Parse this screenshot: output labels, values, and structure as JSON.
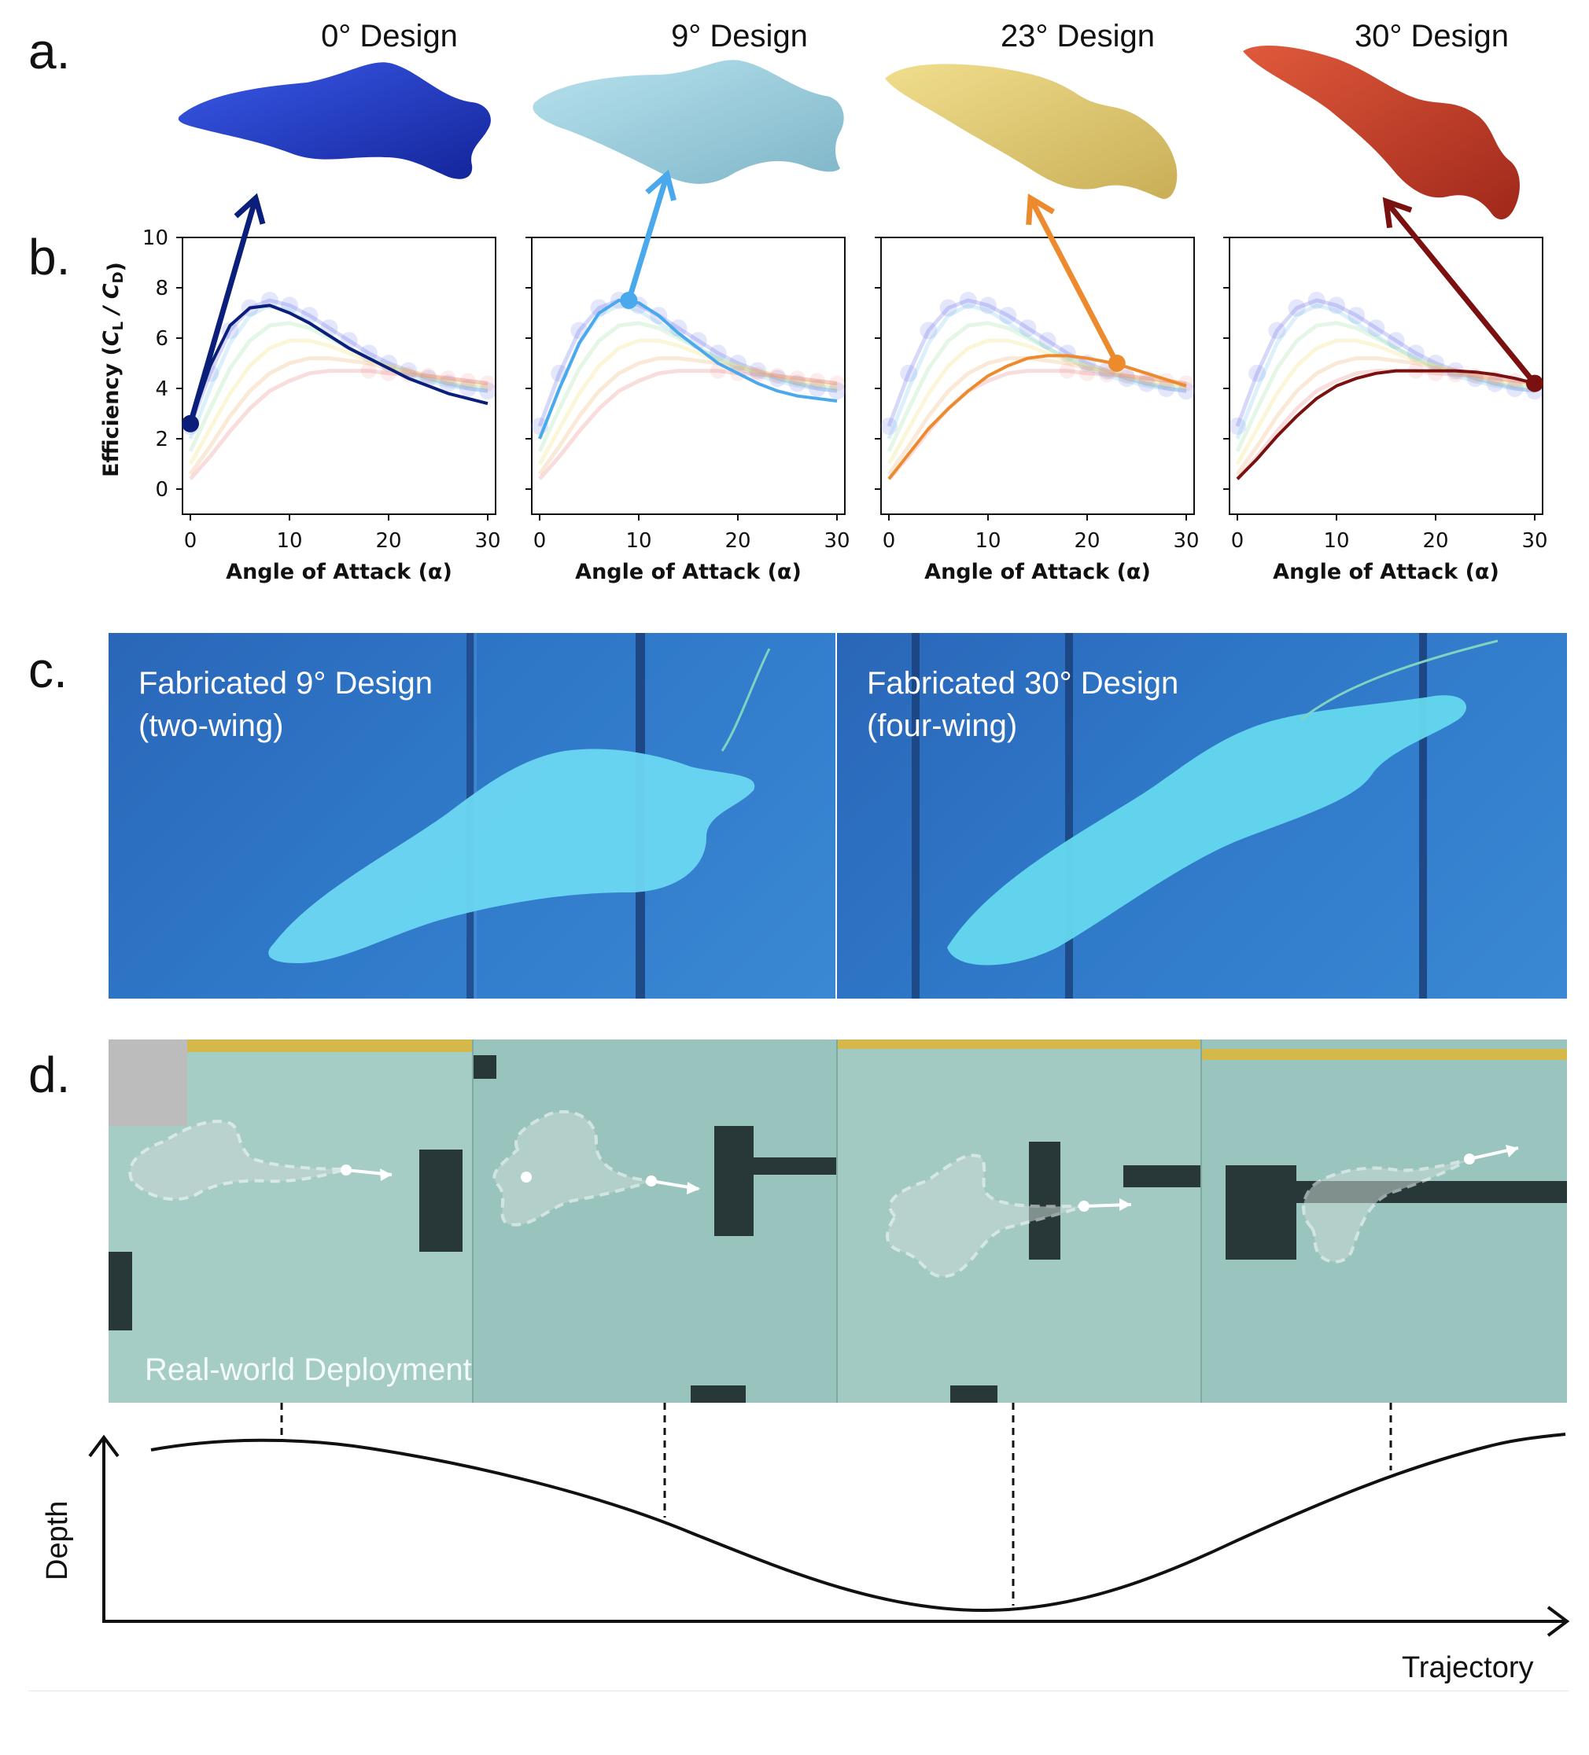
{
  "panel_labels": {
    "a": "a.",
    "b": "b.",
    "c": "c.",
    "d": "d."
  },
  "designs": [
    {
      "title": "0° Design",
      "color": "#1f3fbf",
      "marker_color": "#0b1f7a"
    },
    {
      "title": "9° Design",
      "color": "#8fc6d6",
      "marker_color": "#4aa8ec"
    },
    {
      "title": "23° Design",
      "color": "#dcc56e",
      "marker_color": "#ee8a2e"
    },
    {
      "title": "30° Design",
      "color": "#c23a22",
      "marker_color": "#7a1010"
    }
  ],
  "chart_data": [
    {
      "type": "line",
      "panel": "0° Design",
      "ylabel": "Efficiency (C_L / C_D)",
      "xlabel": "Angle of Attack (α)",
      "xlim": [
        0,
        30
      ],
      "ylim": [
        -1,
        10
      ],
      "xticks": [
        0,
        10,
        20,
        30
      ],
      "yticks": [
        0,
        2,
        4,
        6,
        8,
        10
      ],
      "highlight_series": {
        "name": "0° Design",
        "x": [
          0,
          2,
          4,
          6,
          8,
          10,
          12,
          14,
          16,
          18,
          20,
          22,
          24,
          26,
          28,
          30
        ],
        "y": [
          2.6,
          4.9,
          6.5,
          7.2,
          7.3,
          7.0,
          6.6,
          6.1,
          5.6,
          5.2,
          4.8,
          4.4,
          4.1,
          3.8,
          3.6,
          3.4
        ]
      },
      "marker": {
        "x": 0,
        "y": 2.6
      }
    },
    {
      "type": "line",
      "panel": "9° Design",
      "xlabel": "Angle of Attack (α)",
      "xlim": [
        0,
        30
      ],
      "ylim": [
        -1,
        10
      ],
      "xticks": [
        0,
        10,
        20,
        30
      ],
      "highlight_series": {
        "name": "9° Design",
        "x": [
          0,
          2,
          4,
          6,
          8,
          10,
          12,
          14,
          16,
          18,
          20,
          22,
          24,
          26,
          28,
          30
        ],
        "y": [
          2.0,
          4.0,
          5.8,
          7.0,
          7.5,
          7.4,
          6.9,
          6.2,
          5.6,
          5.0,
          4.6,
          4.2,
          3.9,
          3.7,
          3.6,
          3.5
        ]
      },
      "marker": {
        "x": 9,
        "y": 7.5
      }
    },
    {
      "type": "line",
      "panel": "23° Design",
      "xlabel": "Angle of Attack (α)",
      "xlim": [
        0,
        30
      ],
      "ylim": [
        -1,
        10
      ],
      "xticks": [
        0,
        10,
        20,
        30
      ],
      "highlight_series": {
        "name": "23° Design",
        "x": [
          0,
          2,
          4,
          6,
          8,
          10,
          12,
          14,
          16,
          18,
          20,
          22,
          24,
          26,
          28,
          30
        ],
        "y": [
          0.4,
          1.4,
          2.4,
          3.2,
          3.9,
          4.5,
          4.9,
          5.2,
          5.3,
          5.3,
          5.2,
          5.05,
          4.85,
          4.6,
          4.35,
          4.1
        ]
      },
      "marker": {
        "x": 23,
        "y": 5.0
      }
    },
    {
      "type": "line",
      "panel": "30° Design",
      "xlabel": "Angle of Attack (α)",
      "xlim": [
        0,
        30
      ],
      "ylim": [
        -1,
        10
      ],
      "xticks": [
        0,
        10,
        20,
        30
      ],
      "highlight_series": {
        "name": "30° Design",
        "x": [
          0,
          2,
          4,
          6,
          8,
          10,
          12,
          14,
          16,
          18,
          20,
          22,
          24,
          26,
          28,
          30
        ],
        "y": [
          0.4,
          1.2,
          2.1,
          2.9,
          3.6,
          4.1,
          4.4,
          4.6,
          4.7,
          4.7,
          4.7,
          4.7,
          4.65,
          4.55,
          4.4,
          4.2
        ]
      },
      "marker": {
        "x": 30,
        "y": 4.2
      }
    }
  ],
  "background_series": [
    {
      "color": "#6a72e8",
      "y": [
        2.5,
        4.6,
        6.3,
        7.2,
        7.5,
        7.3,
        6.9,
        6.4,
        5.9,
        5.4,
        5.0,
        4.7,
        4.4,
        4.2,
        4.0,
        3.9
      ]
    },
    {
      "color": "#7ec8f0",
      "y": [
        2.0,
        4.0,
        5.8,
        6.9,
        7.3,
        7.1,
        6.6,
        6.1,
        5.6,
        5.2,
        4.8,
        4.5,
        4.3,
        4.1,
        4.0,
        3.9
      ]
    },
    {
      "color": "#9fe0a0",
      "y": [
        1.5,
        3.2,
        4.8,
        5.9,
        6.5,
        6.6,
        6.4,
        6.0,
        5.6,
        5.2,
        4.9,
        4.6,
        4.4,
        4.2,
        4.1,
        4.0
      ]
    },
    {
      "color": "#f0e070",
      "y": [
        1.0,
        2.4,
        3.8,
        4.9,
        5.6,
        5.9,
        5.9,
        5.7,
        5.4,
        5.1,
        4.9,
        4.7,
        4.5,
        4.3,
        4.2,
        4.1
      ]
    },
    {
      "color": "#f2b070",
      "y": [
        0.6,
        1.7,
        2.9,
        3.9,
        4.6,
        5.0,
        5.2,
        5.2,
        5.1,
        5.0,
        4.8,
        4.7,
        4.5,
        4.4,
        4.3,
        4.2
      ]
    },
    {
      "color": "#e88080",
      "y": [
        0.4,
        1.3,
        2.3,
        3.2,
        3.9,
        4.3,
        4.6,
        4.7,
        4.7,
        4.7,
        4.6,
        4.55,
        4.5,
        4.4,
        4.3,
        4.2
      ]
    }
  ],
  "photos_c": [
    {
      "caption_line1": "Fabricated 9° Design",
      "caption_line2": "(two-wing)"
    },
    {
      "caption_line1": "Fabricated 30° Design",
      "caption_line2": "(four-wing)"
    }
  ],
  "deployment": {
    "label": "Real-world Deployment",
    "y_axis_label": "Depth",
    "x_axis_label": "Trajectory"
  }
}
